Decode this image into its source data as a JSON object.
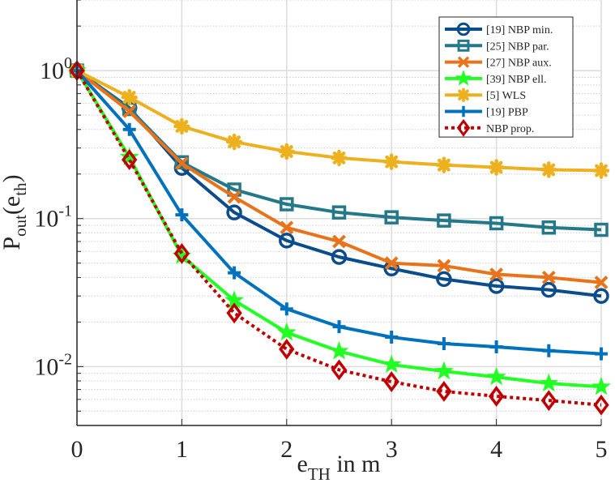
{
  "chart_data": {
    "type": "line",
    "title": "",
    "xlabel": "e_TH in m",
    "xlabel_main": "e",
    "xlabel_sub": "TH",
    "xlabel_rest": " in m",
    "ylabel_main": "P",
    "ylabel_sub": "out",
    "ylabel_rest": "(e",
    "ylabel_sub2": "th",
    "ylabel_end": ")",
    "xlim": [
      0,
      5
    ],
    "ylim": [
      0.004,
      3
    ],
    "yscale": "log",
    "grid": true,
    "legend_position": "top-right",
    "xticks": [
      "0",
      "1",
      "2",
      "3",
      "4",
      "5"
    ],
    "yticks": [
      {
        "base": "10",
        "exp": "0"
      },
      {
        "base": "10",
        "exp": "-1"
      },
      {
        "base": "10",
        "exp": "-2"
      }
    ],
    "x": [
      0,
      0.5,
      1,
      1.5,
      2,
      2.5,
      3,
      3.5,
      4,
      4.5,
      5
    ],
    "series": [
      {
        "name": "[19] NBP min.",
        "color": "#0b4c8c",
        "marker": "circle",
        "dash": false,
        "values": [
          1,
          0.56,
          0.22,
          0.11,
          0.071,
          0.055,
          0.046,
          0.039,
          0.035,
          0.033,
          0.03
        ]
      },
      {
        "name": "[25] NBP par.",
        "color": "#23788a",
        "marker": "square",
        "dash": false,
        "values": [
          1,
          0.55,
          0.24,
          0.157,
          0.125,
          0.11,
          0.102,
          0.097,
          0.093,
          0.087,
          0.084
        ]
      },
      {
        "name": "[27] NBP aux.",
        "color": "#e8731a",
        "marker": "x",
        "dash": false,
        "values": [
          1,
          0.53,
          0.236,
          0.14,
          0.087,
          0.07,
          0.05,
          0.048,
          0.042,
          0.04,
          0.037
        ]
      },
      {
        "name": "[39] NBP ell.",
        "color": "#22ff22",
        "marker": "star",
        "dash": false,
        "values": [
          1,
          0.26,
          0.056,
          0.028,
          0.017,
          0.0127,
          0.0103,
          0.0093,
          0.0085,
          0.0077,
          0.0073
        ]
      },
      {
        "name": "[5] WLS",
        "color": "#edb120",
        "marker": "asterisk",
        "dash": false,
        "values": [
          1,
          0.66,
          0.42,
          0.33,
          0.284,
          0.257,
          0.242,
          0.23,
          0.222,
          0.214,
          0.211
        ]
      },
      {
        "name": "[19] PBP",
        "color": "#0072bd",
        "marker": "plus",
        "dash": false,
        "values": [
          1,
          0.4,
          0.106,
          0.043,
          0.0245,
          0.0186,
          0.0158,
          0.0143,
          0.0136,
          0.0128,
          0.0122
        ]
      },
      {
        "name": "NBP prop.",
        "color": "#c00000",
        "marker": "diamond",
        "dash": true,
        "values": [
          1,
          0.25,
          0.058,
          0.023,
          0.0131,
          0.0095,
          0.0079,
          0.0068,
          0.0063,
          0.0059,
          0.0055
        ]
      }
    ]
  }
}
